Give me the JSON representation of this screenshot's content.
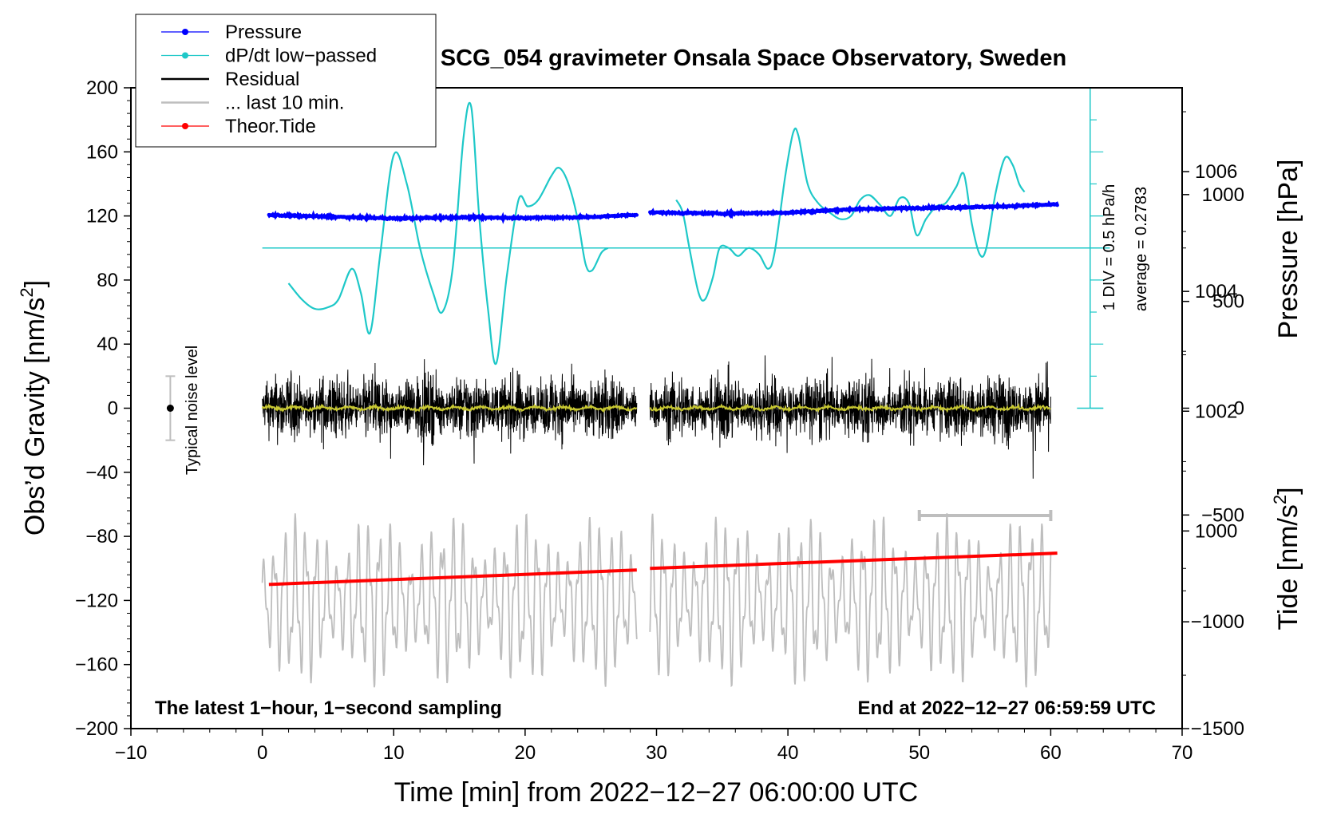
{
  "chart_data": {
    "type": "line",
    "title": "SCG_054 gravimeter Onsala Space Observatory, Sweden",
    "xlabel": "Time [min] from 2022−12−27 06:00:00 UTC",
    "ylabel_left": "Obs’d Gravity [nm/s",
    "ylabel_left_sup": "2",
    "ylabel_left_end": "]",
    "ylabel_right_top": "Pressure [hPa]",
    "ylabel_right_bottom": "Tide [nm/s",
    "ylabel_right_bottom_sup": "2",
    "ylabel_right_bottom_end": "]",
    "x_range": [
      -10,
      70
    ],
    "y_range_left": [
      -200,
      200
    ],
    "x_ticks": [
      "−10",
      "0",
      "10",
      "20",
      "30",
      "40",
      "50",
      "60",
      "70"
    ],
    "x_tick_values": [
      -10,
      0,
      10,
      20,
      30,
      40,
      50,
      60,
      70
    ],
    "y_ticks_left": [
      "200",
      "160",
      "120",
      "80",
      "40",
      "0",
      "−40",
      "−80",
      "−120",
      "−160",
      "−200"
    ],
    "y_tick_values_left": [
      200,
      160,
      120,
      80,
      40,
      0,
      -40,
      -80,
      -120,
      -160,
      -200
    ],
    "pressure_axis": {
      "ticks": [
        "1006",
        "1004",
        "1002",
        "1000"
      ],
      "values": [
        1006,
        1004,
        1002,
        1000
      ],
      "range": [
        996.7,
        1007.4
      ]
    },
    "tide_axis": {
      "ticks": [
        "1000",
        "500",
        "0",
        "−500",
        "−1000",
        "−1500"
      ],
      "values": [
        1000,
        500,
        0,
        -500,
        -1000,
        -1500
      ],
      "range": [
        -1500,
        1500
      ]
    },
    "legend": {
      "placement": "top-left",
      "entries": [
        {
          "label": "Pressure",
          "color": "#0000ff",
          "marker": true
        },
        {
          "label": "dP/dt low−passed",
          "color": "#1ec8c8",
          "marker": true
        },
        {
          "label": "Residual",
          "color": "#000000",
          "marker": false
        },
        {
          "label": "... last 10 min.",
          "color": "#bebebe",
          "marker": false
        },
        {
          "label": "Theor.Tide",
          "color": "#ff0000",
          "marker": true
        }
      ]
    },
    "annotations": {
      "bottom_left": "The latest 1−hour, 1−second sampling",
      "bottom_right": "End at 2022−12−27 06:59:59 UTC",
      "noise": "Typical noise level",
      "dpdt_scale": "1 DIV = 0.5 hPa/h",
      "dpdt_average": "average = 0.2783"
    },
    "noise_level": {
      "x": -7,
      "center": 0,
      "low": -20,
      "high": 20
    },
    "last10_bar": {
      "x_start": 50,
      "x_end": 60,
      "y": -67
    },
    "dpdt_axis": {
      "x": 63,
      "y_baseline": 100,
      "div_count": 10
    },
    "series": [
      {
        "name": "Pressure",
        "color": "#0000ff",
        "segments": [
          {
            "x": [
              0.5,
              5,
              10,
              15,
              20,
              25,
              28.5
            ],
            "y": [
              120.5,
              119.6,
              118.4,
              119.1,
              118.8,
              119.3,
              120.8
            ]
          },
          {
            "x": [
              29.5,
              35,
              40,
              45,
              50,
              55,
              60.5
            ],
            "y": [
              122.2,
              121.5,
              122.1,
              124.2,
              125.0,
              125.6,
              127.2
            ]
          }
        ]
      },
      {
        "name": "dP/dt low−passed",
        "color": "#1ec8c8",
        "baseline": 100,
        "segments": [
          {
            "x": [
              2,
              3,
              4,
              5,
              5.8,
              6.8,
              7.5,
              8.2,
              9,
              10,
              11,
              12,
              13,
              13.7,
              14.5,
              15.3,
              15.9,
              16.5,
              17.2,
              17.8,
              18.6,
              19.5,
              20.2,
              21,
              22,
              22.6,
              23.3,
              24,
              24.6,
              25.1,
              25.8,
              26.3
            ],
            "y": [
              78,
              68,
              62,
              63,
              68,
              87,
              72,
              47,
              98,
              158,
              140,
              100,
              72,
              60,
              88,
              168,
              188,
              120,
              60,
              28,
              82,
              130,
              126,
              130,
              145,
              150,
              140,
              118,
              90,
              86,
              97,
              100
            ]
          },
          {
            "x": [
              31.5,
              32,
              32.5,
              33.2,
              33.7,
              34.3,
              34.8,
              35.5,
              36.2,
              37,
              37.8,
              38.5,
              39,
              39.8,
              40.4,
              40.8,
              41.5,
              42.3,
              43.2,
              44,
              44.8,
              45.5,
              46.2,
              47,
              47.8,
              48.5,
              49.2,
              49.8,
              50.5,
              51.3,
              52,
              52.8,
              53.4,
              54,
              54.6,
              55.1,
              55.8,
              56.5,
              57.1,
              57.6,
              58
            ],
            "y": [
              130,
              122,
              100,
              72,
              68,
              82,
              100,
              100,
              95,
              100,
              96,
              87,
              98,
              145,
              172,
              170,
              140,
              128,
              122,
              118,
              120,
              130,
              133,
              127,
              120,
              131,
              128,
              108,
              118,
              126,
              128,
              138,
              146,
              115,
              96,
              100,
              134,
              156,
              152,
              140,
              135
            ]
          }
        ]
      },
      {
        "name": "Residual",
        "color": "#000000",
        "type": "noise",
        "segments": [
          [
            0,
            28.5
          ],
          [
            29.5,
            60
          ]
        ],
        "amplitude": 40
      },
      {
        "name": "Residual smoothed",
        "color": "#c8c832",
        "type": "noise",
        "segments": [
          [
            0,
            28.5
          ],
          [
            29.5,
            60
          ]
        ],
        "amplitude": 2
      },
      {
        "name": "... last 10 min.",
        "color": "#bebebe",
        "type": "oscillation",
        "segments": [
          [
            0,
            28.5
          ],
          [
            29.5,
            60
          ]
        ]
      },
      {
        "name": "Theor.Tide",
        "color": "#ff0000",
        "segments": [
          {
            "x": [
              0.5,
              28.5
            ],
            "y": [
              -110,
              -101
            ]
          },
          {
            "x": [
              29.5,
              60.5
            ],
            "y": [
              -100,
              -90.5
            ]
          }
        ]
      }
    ]
  }
}
